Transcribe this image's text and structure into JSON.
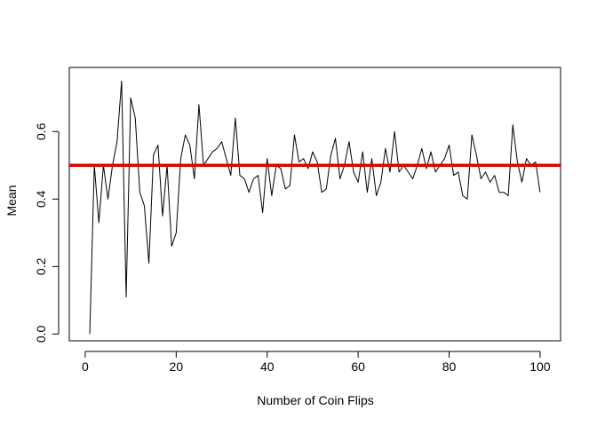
{
  "chart_data": {
    "type": "line",
    "title": "",
    "xlabel": "Number of Coin Flips",
    "ylabel": "Mean",
    "xlim": [
      -3.5,
      104.5
    ],
    "ylim": [
      -0.02,
      0.79
    ],
    "x_ticks": [
      0,
      20,
      40,
      60,
      80,
      100
    ],
    "y_ticks": [
      0.0,
      0.2,
      0.4,
      0.6
    ],
    "grid": false,
    "legend": "none",
    "series": [
      {
        "color": "#000000",
        "x": [
          1,
          2,
          3,
          4,
          5,
          6,
          7,
          8,
          9,
          10,
          11,
          12,
          13,
          14,
          15,
          16,
          17,
          18,
          19,
          20,
          21,
          22,
          23,
          24,
          25,
          26,
          27,
          28,
          29,
          30,
          31,
          32,
          33,
          34,
          35,
          36,
          37,
          38,
          39,
          40,
          41,
          42,
          43,
          44,
          45,
          46,
          47,
          48,
          49,
          50,
          51,
          52,
          53,
          54,
          55,
          56,
          57,
          58,
          59,
          60,
          61,
          62,
          63,
          64,
          65,
          66,
          67,
          68,
          69,
          70,
          71,
          72,
          73,
          74,
          75,
          76,
          77,
          78,
          79,
          80,
          81,
          82,
          83,
          84,
          85,
          86,
          87,
          88,
          89,
          90,
          91,
          92,
          93,
          94,
          95,
          96,
          97,
          98,
          99,
          100
        ],
        "y": [
          0.0,
          0.5,
          0.33,
          0.5,
          0.4,
          0.5,
          0.57,
          0.75,
          0.11,
          0.7,
          0.64,
          0.42,
          0.38,
          0.21,
          0.53,
          0.56,
          0.35,
          0.5,
          0.26,
          0.3,
          0.52,
          0.59,
          0.56,
          0.46,
          0.68,
          0.5,
          0.52,
          0.54,
          0.55,
          0.57,
          0.52,
          0.47,
          0.64,
          0.47,
          0.46,
          0.42,
          0.46,
          0.47,
          0.36,
          0.52,
          0.41,
          0.5,
          0.49,
          0.43,
          0.44,
          0.59,
          0.51,
          0.52,
          0.49,
          0.54,
          0.51,
          0.42,
          0.43,
          0.53,
          0.58,
          0.46,
          0.5,
          0.57,
          0.48,
          0.45,
          0.54,
          0.42,
          0.52,
          0.41,
          0.45,
          0.55,
          0.48,
          0.6,
          0.48,
          0.5,
          0.48,
          0.46,
          0.5,
          0.55,
          0.49,
          0.54,
          0.48,
          0.5,
          0.52,
          0.56,
          0.47,
          0.48,
          0.41,
          0.4,
          0.59,
          0.53,
          0.46,
          0.48,
          0.45,
          0.47,
          0.42,
          0.42,
          0.41,
          0.62,
          0.51,
          0.45,
          0.52,
          0.5,
          0.51,
          0.42
        ]
      },
      {
        "color": "#e00000",
        "x": [
          -3.5,
          104.5
        ],
        "y": [
          0.5,
          0.5
        ]
      }
    ]
  }
}
